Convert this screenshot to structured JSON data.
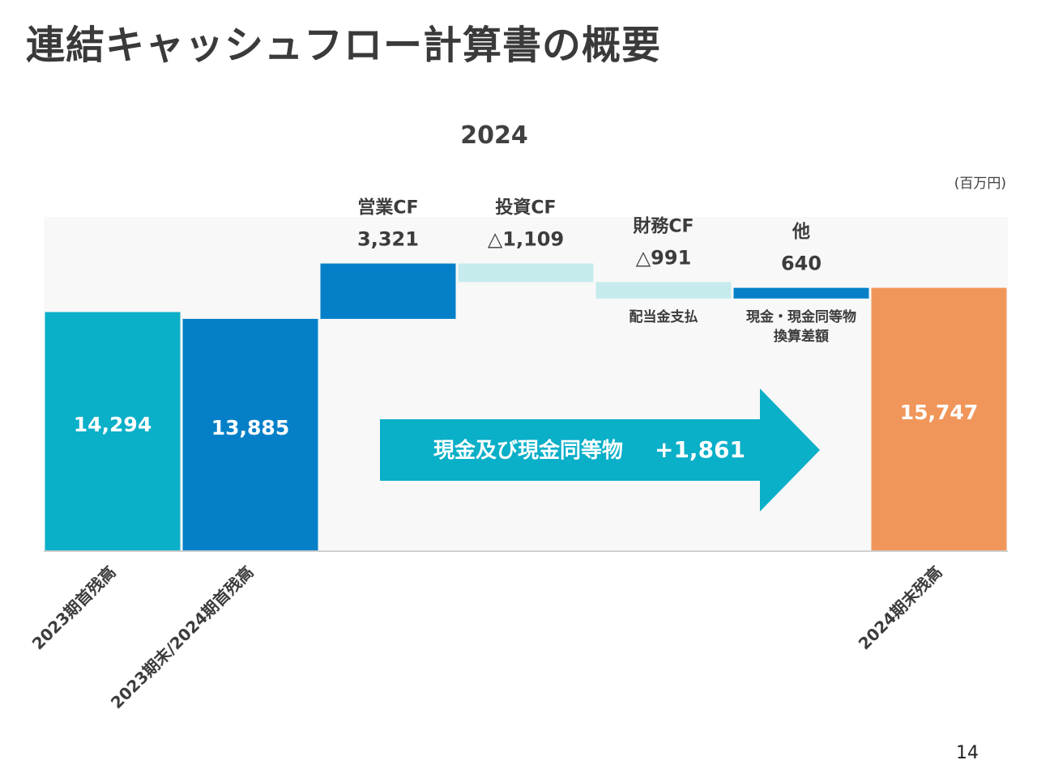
{
  "page": {
    "title": "連結キャッシュフロー計算書の概要",
    "unit": "(百万円)",
    "page_number": "14"
  },
  "chart_data": {
    "type": "waterfall",
    "title": "2024",
    "unit": "百万円",
    "ylim": [
      0,
      20000
    ],
    "bars": [
      {
        "label": "2023期首残高",
        "value": 14294,
        "display": "14,294",
        "kind": "total",
        "color": "#0aafc8"
      },
      {
        "label": "2023期末/2024期首残高",
        "value": 13885,
        "display": "13,885",
        "kind": "total",
        "color": "#0580c8"
      },
      {
        "label": "営業CF",
        "value": 3321,
        "display": "3,321",
        "kind": "delta",
        "color": "#0580c8"
      },
      {
        "label": "投資CF",
        "value": -1109,
        "display": "△1,109",
        "kind": "delta",
        "color": "#c5ebed"
      },
      {
        "label": "財務CF",
        "value": -991,
        "display": "△991",
        "kind": "delta",
        "color": "#c5ebed",
        "note": "配当金支払"
      },
      {
        "label": "他",
        "value": 640,
        "display": "640",
        "kind": "delta",
        "color": "#0580c8",
        "note": "現金・現金同等物\n換算差額"
      },
      {
        "label": "2024期末残高",
        "value": 15747,
        "display": "15,747",
        "kind": "total",
        "color": "#f0965a"
      }
    ],
    "arrow": {
      "label": "現金及び現金同等物",
      "value": "+1,861",
      "color": "#0aafc8"
    }
  }
}
